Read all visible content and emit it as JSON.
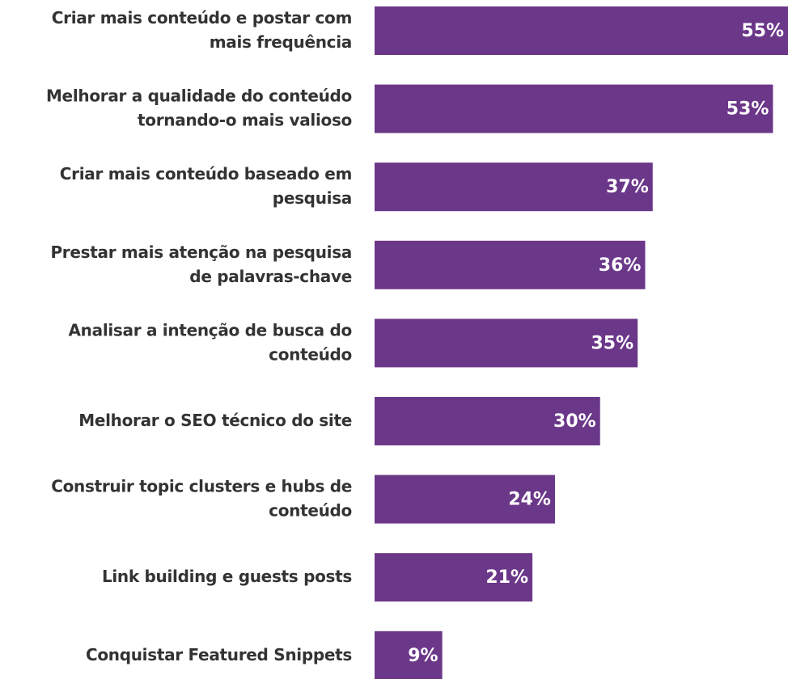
{
  "chart_data": {
    "type": "bar",
    "orientation": "horizontal",
    "categories": [
      "Criar mais conteúdo e postar com\nmais frequência",
      "Melhorar a qualidade do conteúdo\ntornando-o mais valioso",
      "Criar mais conteúdo baseado em\npesquisa",
      "Prestar mais atenção na pesquisa\nde palavras-chave",
      "Analisar a intenção de busca do\nconteúdo",
      "Melhorar o SEO técnico do site",
      "Construir topic clusters e hubs de\nconteúdo",
      "Link building e guests posts",
      "Conquistar Featured Snippets"
    ],
    "values": [
      55,
      53,
      37,
      36,
      35,
      30,
      24,
      21,
      9
    ],
    "value_labels": [
      "55%",
      "53%",
      "37%",
      "36%",
      "35%",
      "30%",
      "24%",
      "21%",
      "9%"
    ],
    "color": "#6b3789"
  }
}
